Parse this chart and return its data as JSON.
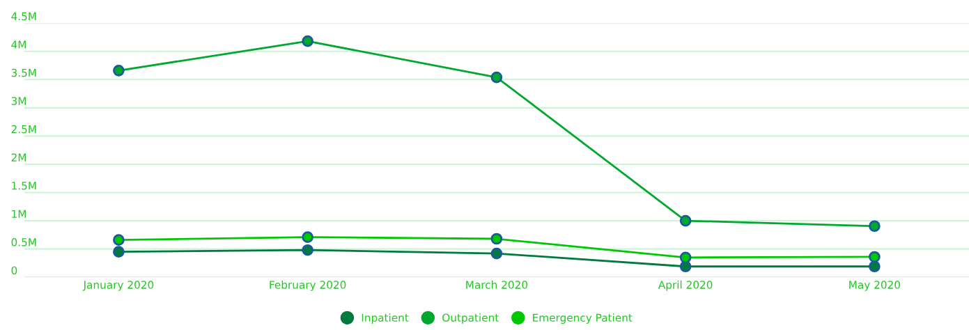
{
  "chart_data": {
    "type": "line",
    "categories": [
      "January 2020",
      "February 2020",
      "March 2020",
      "April 2020",
      "May 2020"
    ],
    "series": [
      {
        "name": "Inpatient",
        "color": "#007a3d",
        "values": [
          0.45,
          0.48,
          0.42,
          0.19,
          0.19
        ]
      },
      {
        "name": "Outpatient",
        "color": "#00a82d",
        "values": [
          3.66,
          4.18,
          3.54,
          1.0,
          0.905
        ]
      },
      {
        "name": "Emergency Patient",
        "color": "#00c800",
        "values": [
          0.66,
          0.71,
          0.68,
          0.35,
          0.36
        ]
      }
    ],
    "ylim": [
      0,
      4.5
    ],
    "yticks": [
      0,
      {
        "value": 0.5,
        "label": "0.5M"
      },
      {
        "value": 1,
        "label": "1M"
      },
      {
        "value": 1.5,
        "label": "1.5M"
      },
      {
        "value": 2,
        "label": "2M"
      },
      {
        "value": 2.5,
        "label": "2.5M"
      },
      {
        "value": 3,
        "label": "3M"
      },
      {
        "value": 3.5,
        "label": "3.5M"
      },
      {
        "value": 4,
        "label": "4M"
      },
      {
        "value": 4.5,
        "label": "4.5M"
      }
    ],
    "grid": "y",
    "legend": "bottom",
    "marker": "circle",
    "line_style": "solid"
  }
}
